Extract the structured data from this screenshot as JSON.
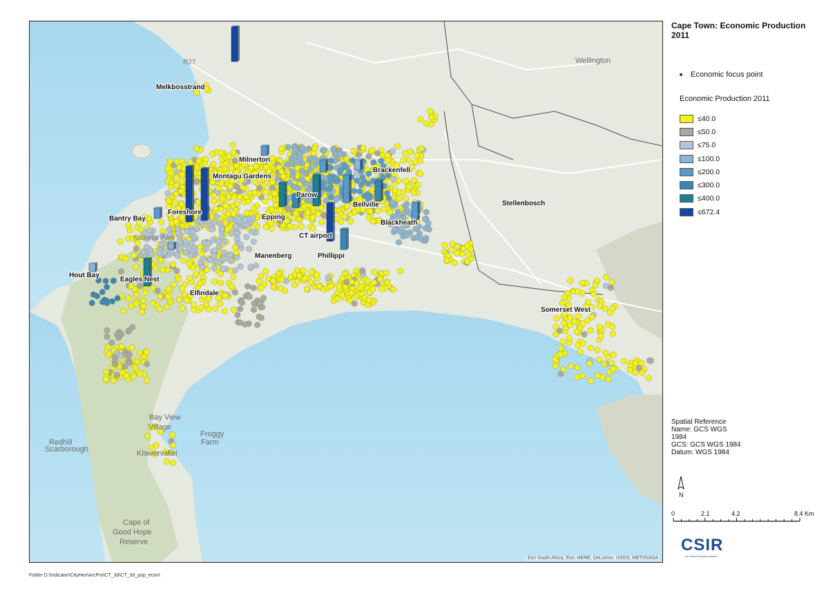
{
  "map": {
    "places": [
      {
        "name": "Melkbosstrand"
      },
      {
        "name": "Milnerton"
      },
      {
        "name": "Montagu Gardens"
      },
      {
        "name": "Brackenfell"
      },
      {
        "name": "Parow"
      },
      {
        "name": "Bellville"
      },
      {
        "name": "Foreshore"
      },
      {
        "name": "Bantry Bay"
      },
      {
        "name": "Epping"
      },
      {
        "name": "Blackheath"
      },
      {
        "name": "CT airport"
      },
      {
        "name": "Stellenbosch"
      },
      {
        "name": "Manenberg"
      },
      {
        "name": "Phillippi"
      },
      {
        "name": "Hout Bay"
      },
      {
        "name": "Eagles Nest"
      },
      {
        "name": "Elfindale"
      },
      {
        "name": "Somerset West"
      }
    ],
    "basemap_labels": [
      {
        "text": "Wellington"
      },
      {
        "text": "Redhill"
      },
      {
        "text": "Scarborough"
      },
      {
        "text": "Bay View"
      },
      {
        "text": "Village"
      },
      {
        "text": "Froggy"
      },
      {
        "text": "Farm"
      },
      {
        "text": "Klawervallei"
      },
      {
        "text": "Cape of"
      },
      {
        "text": "Good Hope"
      },
      {
        "text": "Reserve"
      },
      {
        "text": "National Park"
      },
      {
        "text": "R27"
      }
    ],
    "attribution": "Esri South Africa, Esri, HERE, DeLorme, USGS, METI/NASA"
  },
  "legend": {
    "title": "Cape Town: Economic Production 2011",
    "focus_label": "Economic focus point",
    "focus_color": "#7a1020",
    "subtitle": "Economic Production 2011",
    "classes": [
      {
        "label": "≤40.0",
        "color": "#f2f21e"
      },
      {
        "label": "≤50.0",
        "color": "#a8a8a8"
      },
      {
        "label": "≤75.0",
        "color": "#b2c3dd"
      },
      {
        "label": "≤100.0",
        "color": "#8fb3d6"
      },
      {
        "label": "≤200.0",
        "color": "#5b9ac9"
      },
      {
        "label": "≤300.0",
        "color": "#3a86b0"
      },
      {
        "label": "≤400.0",
        "color": "#1e7f8e"
      },
      {
        "label": "≤672.4",
        "color": "#1547a0"
      }
    ]
  },
  "spatial_reference": {
    "heading": "Spatial Reference",
    "name_line1": "Name: GCS WGS",
    "name_line2": "1984",
    "gcs": "GCS: GCS WGS 1984",
    "datum": "Datum: WGS 1984"
  },
  "north_label": "N",
  "scale": {
    "labels": [
      "0",
      "2.1",
      "4.2",
      "8.4 Km"
    ]
  },
  "logo": {
    "text": "CSIR",
    "tagline": "our future through science"
  },
  "footer": "Folder D:\\Indicator\\CityHex\\ArcPro\\CT_3d\\CT_3d_pop_econ\\"
}
